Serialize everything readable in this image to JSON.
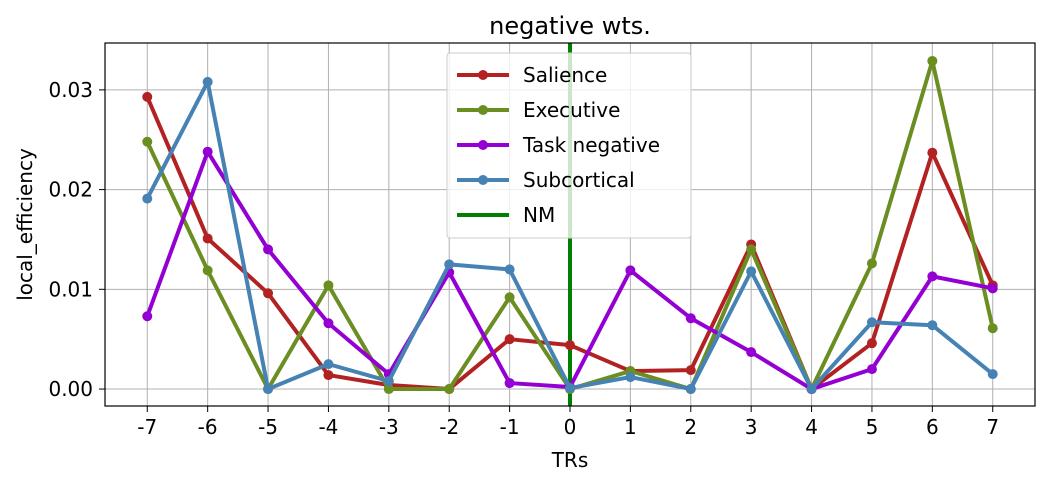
{
  "chart_data": {
    "type": "line",
    "title": "negative wts.",
    "xlabel": "TRs",
    "ylabel": "local_efficiency",
    "x": [
      -7,
      -6,
      -5,
      -4,
      -3,
      -2,
      -1,
      0,
      1,
      2,
      3,
      4,
      5,
      6,
      7
    ],
    "x_tick_labels": [
      "-7",
      "-6",
      "-5",
      "-4",
      "-3",
      "-2",
      "-1",
      "0",
      "1",
      "2",
      "3",
      "4",
      "5",
      "6",
      "7"
    ],
    "y_ticks": [
      0.0,
      0.01,
      0.02,
      0.03
    ],
    "y_tick_labels": [
      "0.00",
      "0.01",
      "0.02",
      "0.03"
    ],
    "xlim": [
      -7.7,
      7.7
    ],
    "ylim": [
      -0.0017,
      0.0347
    ],
    "grid": true,
    "legend_position": "top-center",
    "series": [
      {
        "name": "Salience",
        "color": "#b22222",
        "values": [
          0.0293,
          0.0151,
          0.0096,
          0.0014,
          0.0004,
          0.0,
          0.005,
          0.0044,
          0.0018,
          0.0019,
          0.0145,
          0.0,
          0.0046,
          0.0237,
          0.0104
        ]
      },
      {
        "name": "Executive",
        "color": "#6b8e23",
        "values": [
          0.0248,
          0.0119,
          0.0,
          0.0104,
          0.0,
          0.0,
          0.0092,
          0.0,
          0.0018,
          0.0,
          0.014,
          0.0,
          0.0126,
          0.0329,
          0.0061
        ]
      },
      {
        "name": "Task negative",
        "color": "#9400d3",
        "values": [
          0.0073,
          0.0238,
          0.014,
          0.0066,
          0.0015,
          0.0117,
          0.0006,
          0.0002,
          0.0119,
          0.0071,
          0.0037,
          0.0,
          0.002,
          0.0113,
          0.0101
        ]
      },
      {
        "name": "Subcortical",
        "color": "#4682b4",
        "values": [
          0.0191,
          0.0308,
          0.0,
          0.0025,
          0.0008,
          0.0125,
          0.012,
          0.0001,
          0.0012,
          0.0,
          0.0118,
          0.0,
          0.0067,
          0.0064,
          0.0015
        ]
      }
    ],
    "vline": {
      "name": "NM",
      "x": 0,
      "color": "#008000"
    }
  }
}
